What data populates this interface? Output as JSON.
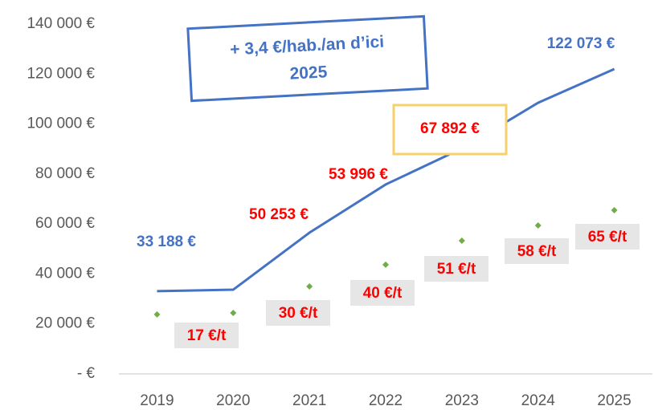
{
  "chart_data": {
    "type": "line",
    "categories": [
      "2019",
      "2020",
      "2021",
      "2022",
      "2023",
      "2024",
      "2025"
    ],
    "series": [
      {
        "color": "#4472c4",
        "values": [
          33100,
          33700,
          56500,
          75800,
          90200,
          108500,
          122000
        ]
      },
      {
        "color": "#70ad47",
        "marker": "diamond",
        "line": false,
        "values": [
          23800,
          24400,
          35000,
          43700,
          53300,
          59400,
          65500
        ]
      }
    ],
    "ylim": [
      0,
      140000
    ],
    "yticks": [
      {
        "value": 0,
        "label": "-  €"
      },
      {
        "value": 20000,
        "label": "20 000 €"
      },
      {
        "value": 40000,
        "label": "40 000 €"
      },
      {
        "value": 60000,
        "label": "60 000 €"
      },
      {
        "value": 80000,
        "label": "80 000 €"
      },
      {
        "value": 100000,
        "label": "100 000 €"
      },
      {
        "value": 120000,
        "label": "120 000 €"
      },
      {
        "value": 140000,
        "label": "140 000 €"
      }
    ],
    "grid": false,
    "callout": [
      "+ 3,4 €/hab./an d’ici",
      "2025"
    ],
    "annotations": [
      {
        "text": "33 188 €",
        "color": "#4472c4"
      },
      {
        "text": "50 253 €",
        "color": "#ff0000"
      },
      {
        "text": "53 996 €",
        "color": "#ff0000"
      },
      {
        "text": "67 892 €",
        "color": "#ff0000"
      },
      {
        "text": "122 073 €",
        "color": "#4472c4"
      }
    ],
    "point_labels": [
      "17 €/t",
      "30 €/t",
      "40 €/t",
      "51 €/t",
      "58 €/t",
      "65 €/t"
    ]
  }
}
